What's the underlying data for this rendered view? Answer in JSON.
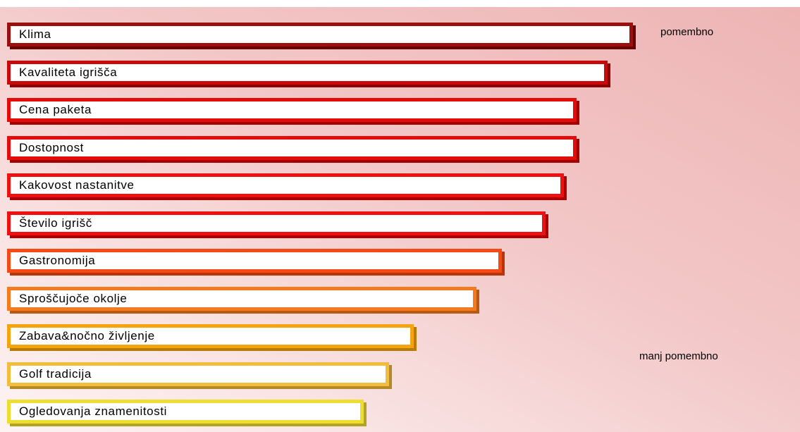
{
  "chart_data": {
    "type": "bar",
    "orientation": "horizontal",
    "categories": [
      "Klima",
      "Kavaliteta igrišča",
      "Cena paketa",
      "Dostopnost",
      "Kakovost nastanitve",
      "Število igrišč",
      "Gastronomija",
      "Sproščujoče okolje",
      "Zabava&nočno življenje",
      "Golf tradicija",
      "Ogledovanja znamenitosti"
    ],
    "values": [
      100,
      96,
      91,
      91,
      89,
      86,
      79,
      75,
      65,
      61,
      57
    ],
    "colors": [
      "#9b0f0f",
      "#c80a0a",
      "#e40b0b",
      "#e40b0b",
      "#ee1111",
      "#ee1111",
      "#f54a16",
      "#f57a1e",
      "#f5a30f",
      "#f2bc3d",
      "#eedd30"
    ],
    "shadow_colors": [
      "#6a0000",
      "#8c0000",
      "#a30000",
      "#a30000",
      "#ad0000",
      "#ad0000",
      "#b8350a",
      "#b85a12",
      "#b87a08",
      "#b38a26",
      "#b0a420"
    ],
    "annotations": {
      "top": "pomembno",
      "bottom": "manj pomembno"
    },
    "xlim": [
      0,
      100
    ],
    "grid": false,
    "legend": "none"
  }
}
